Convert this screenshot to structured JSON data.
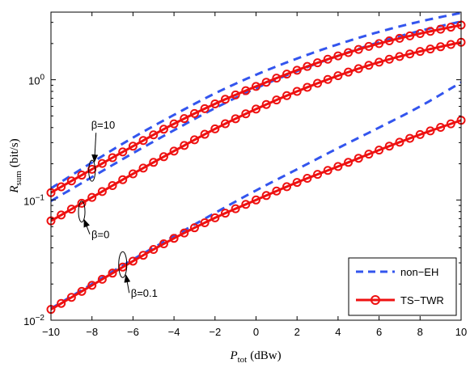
{
  "chart_data": {
    "type": "line",
    "xlabel": {
      "main": "P",
      "sub": "tot",
      "unit": "(dBw)"
    },
    "ylabel": {
      "main": "R",
      "sub": "sum",
      "unit": "(bit/s)"
    },
    "xlim": [
      -10,
      10
    ],
    "ylim": [
      0.01,
      3.65
    ],
    "yscale": "log",
    "x_ticks": [
      -10,
      -8,
      -6,
      -4,
      -2,
      0,
      2,
      4,
      6,
      8,
      10
    ],
    "x_tick_labels": [
      "−10",
      "−8",
      "−6",
      "−4",
      "−2",
      "0",
      "2",
      "4",
      "6",
      "8",
      "10"
    ],
    "y_ticks": [
      {
        "value": 0.01,
        "base": "10",
        "exp": "−2"
      },
      {
        "value": 0.1,
        "base": "10",
        "exp": "−1"
      },
      {
        "value": 1,
        "base": "10",
        "exp": "0"
      }
    ],
    "grid": false,
    "legend": {
      "position": "bottom-right",
      "entries": [
        {
          "label": "non−EH",
          "style": "dashed",
          "color": "#3355EE"
        },
        {
          "label": "TS−TWR",
          "style": "solid-circle-markers",
          "color": "#EE1111"
        }
      ]
    },
    "annotations": [
      {
        "text": "β=10",
        "x": -8,
        "y": 0.175
      },
      {
        "text": "β=0",
        "x": -8.5,
        "y": 0.08
      },
      {
        "text": "β=0.1",
        "x": -6.5,
        "y": 0.029
      }
    ],
    "series": [
      {
        "group": "β=10",
        "style": "non−EH",
        "x": [
          -10,
          -8,
          -6,
          -4,
          -2,
          0,
          2,
          4,
          6,
          8,
          10
        ],
        "y": [
          0.125,
          0.205,
          0.33,
          0.51,
          0.77,
          1.1,
          1.5,
          1.97,
          2.5,
          3.05,
          3.6
        ]
      },
      {
        "group": "β=10",
        "style": "TS−TWR",
        "x": [
          -10,
          -8,
          -6,
          -4,
          -2,
          0,
          2,
          4,
          6,
          8,
          10
        ],
        "y": [
          0.115,
          0.18,
          0.28,
          0.43,
          0.63,
          0.88,
          1.2,
          1.58,
          2.0,
          2.42,
          2.85
        ]
      },
      {
        "group": "β=0",
        "style": "non−EH",
        "x": [
          -10,
          -8,
          -6,
          -4,
          -2,
          0,
          2,
          4,
          6,
          8,
          10
        ],
        "y": [
          0.098,
          0.155,
          0.245,
          0.38,
          0.58,
          0.85,
          1.18,
          1.58,
          2.05,
          2.55,
          3.05
        ]
      },
      {
        "group": "β=0",
        "style": "TS−TWR",
        "x": [
          -10,
          -8,
          -6,
          -4,
          -2,
          0,
          2,
          4,
          6,
          8,
          10
        ],
        "y": [
          0.067,
          0.105,
          0.165,
          0.255,
          0.39,
          0.57,
          0.8,
          1.08,
          1.4,
          1.72,
          2.05
        ]
      },
      {
        "group": "β=0.1",
        "style": "non−EH",
        "x": [
          -10,
          -8,
          -6,
          -4,
          -2,
          0,
          2,
          4,
          6,
          8,
          10
        ],
        "y": [
          0.0125,
          0.02,
          0.032,
          0.05,
          0.078,
          0.12,
          0.18,
          0.27,
          0.4,
          0.6,
          0.95
        ]
      },
      {
        "group": "β=0.1",
        "style": "TS−TWR",
        "x": [
          -10,
          -8,
          -6,
          -4,
          -2,
          0,
          2,
          4,
          6,
          8,
          10
        ],
        "y": [
          0.0123,
          0.0195,
          0.031,
          0.048,
          0.071,
          0.1,
          0.14,
          0.19,
          0.26,
          0.35,
          0.46
        ]
      }
    ]
  }
}
